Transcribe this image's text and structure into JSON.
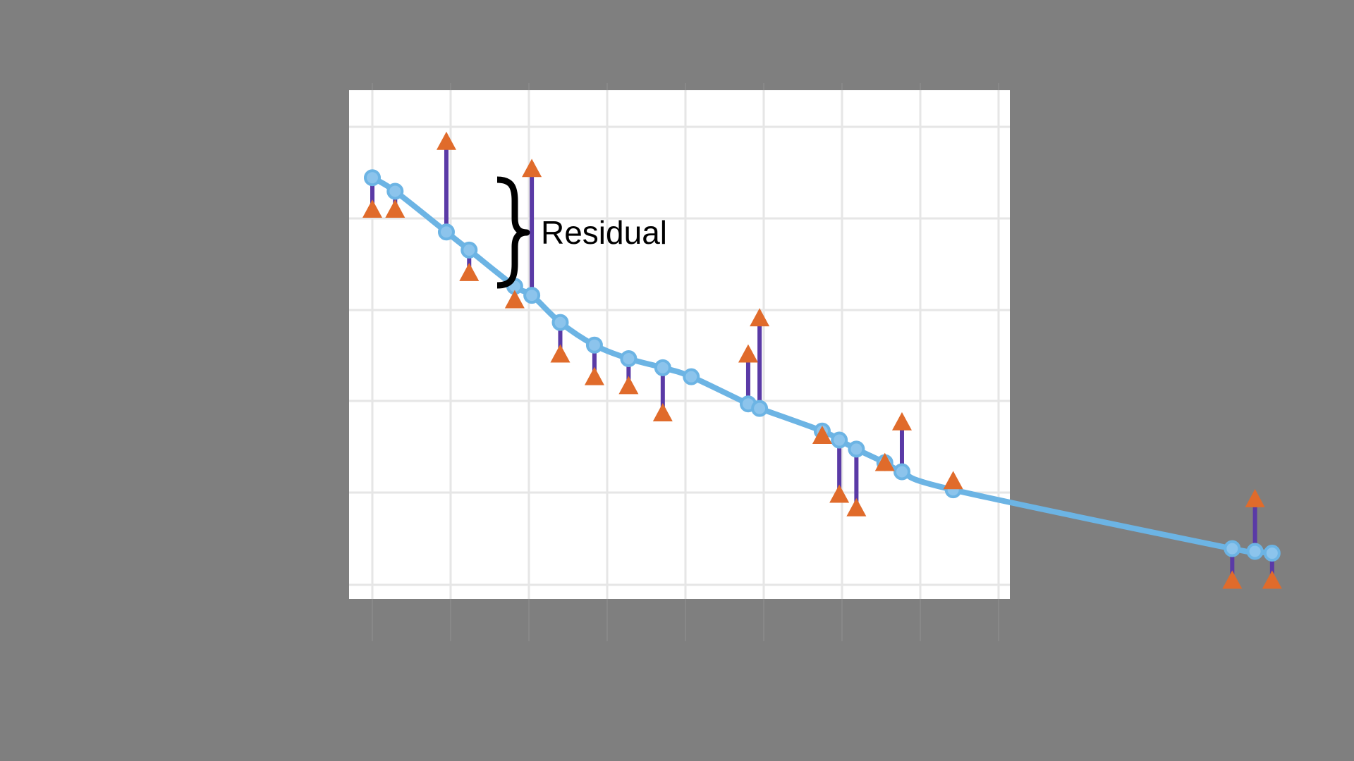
{
  "chart_data": {
    "type": "scatter",
    "title": "",
    "xlabel": "",
    "ylabel": "",
    "xlim": [
      0,
      8
    ],
    "ylim": [
      0,
      5.5
    ],
    "grid": true,
    "legend": "none",
    "annotation": {
      "text": "Residual",
      "kind": "brace"
    },
    "series": [
      {
        "role": "fitted-curve",
        "x": [
          0.0,
          0.2,
          0.65,
          0.85,
          1.25,
          1.4,
          1.65,
          1.95,
          2.25,
          2.55,
          2.8,
          3.3,
          3.4,
          3.95,
          4.1,
          4.25,
          4.5,
          4.65,
          5.1,
          7.55,
          7.75,
          7.9
        ],
        "y": [
          4.5,
          4.35,
          3.9,
          3.7,
          3.3,
          3.2,
          2.9,
          2.65,
          2.5,
          2.4,
          2.3,
          2.0,
          1.95,
          1.7,
          1.6,
          1.5,
          1.35,
          1.25,
          1.05,
          0.4,
          0.37,
          0.35
        ]
      },
      {
        "role": "observed",
        "x": [
          0.0,
          0.2,
          0.65,
          0.85,
          1.25,
          1.4,
          1.65,
          1.95,
          2.25,
          2.55,
          3.3,
          3.4,
          3.95,
          4.1,
          4.25,
          4.5,
          4.65,
          5.1,
          7.55,
          7.75,
          7.9
        ],
        "y": [
          4.15,
          4.15,
          4.9,
          3.45,
          3.15,
          4.6,
          2.55,
          2.3,
          2.2,
          1.9,
          2.55,
          2.95,
          1.65,
          1.0,
          0.85,
          1.35,
          1.8,
          1.15,
          0.05,
          0.95,
          0.05
        ]
      }
    ]
  },
  "colors": {
    "background": "#7f7f7f",
    "plot_background": "#ffffff",
    "grid": "#e6e6e6",
    "curve": "#6cb4e4",
    "observed": "#e06b2b",
    "residual": "#5a3aa6"
  },
  "legend_items": []
}
